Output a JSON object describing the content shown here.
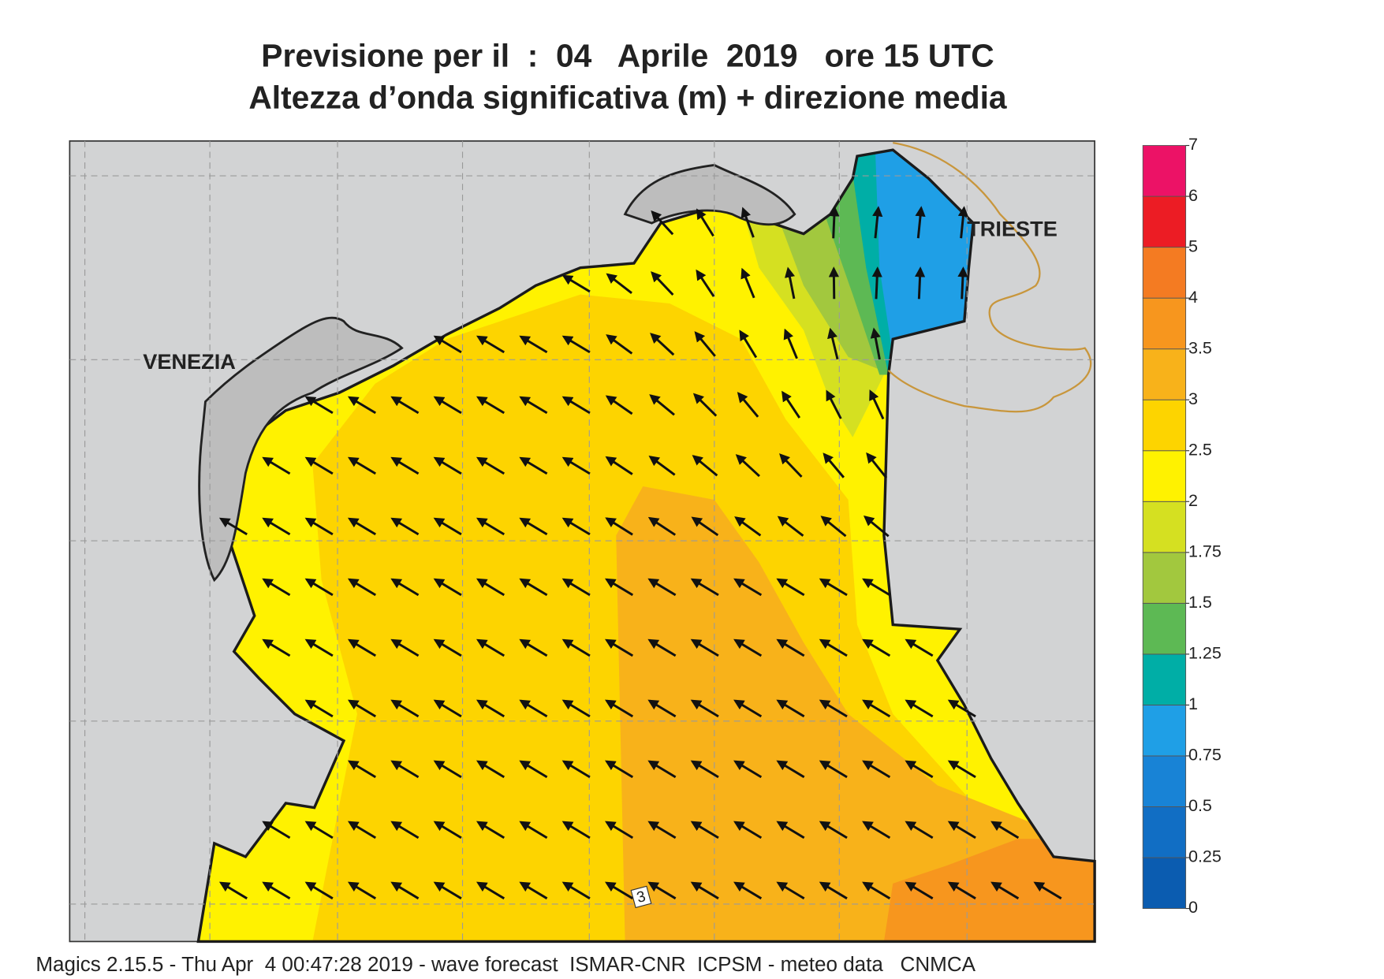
{
  "title": [
    "Previsione per il  :  04   Aprile  2019   ore 15 UTC",
    "Altezza d’onda significativa (m) + direzione media"
  ],
  "places": [
    "VENEZIA",
    "TRIESTE"
  ],
  "contour_labels": [
    3
  ],
  "legend": {
    "ticks": [
      0,
      0.25,
      0.5,
      0.75,
      1,
      1.25,
      1.5,
      1.75,
      2,
      2.5,
      3,
      3.5,
      4,
      5,
      6,
      7
    ],
    "colors": [
      "#0b5cb0",
      "#116ec4",
      "#1883d6",
      "#1f9fe6",
      "#00aea6",
      "#5db954",
      "#a2c83e",
      "#d5e021",
      "#fff200",
      "#fdd400",
      "#f8b21a",
      "#f7961e",
      "#f47b22",
      "#ec1c24",
      "#ec1266"
    ]
  },
  "footer": "Magics 2.15.5 - Thu Apr  4 00:47:28 2019 - wave forecast  ISMAR-CNR  ICPSM - meteo data   CNMCA"
}
